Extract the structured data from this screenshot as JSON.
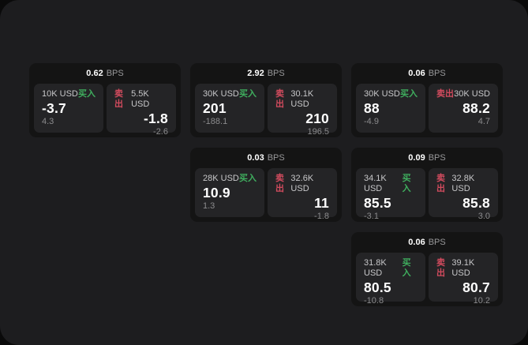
{
  "labels": {
    "bps_unit": "BPS",
    "buy": "买入",
    "sell": "卖出"
  },
  "colors": {
    "backdrop": "#0a0a0a",
    "window_bg": "#1d1d1f",
    "card_bg": "#141414",
    "panel_bg": "#242426",
    "buy_green": "#3fae5e",
    "sell_red": "#d24b5e",
    "value_white": "#ffffff",
    "muted_gray": "#8b8b8d"
  },
  "cards": [
    {
      "bps": "0.62",
      "buy": {
        "notional": "10K USD",
        "price": "-3.7",
        "delta": "4.3"
      },
      "sell": {
        "notional": "5.5K USD",
        "price": "-1.8",
        "delta": "-2.6"
      }
    },
    {
      "bps": "2.92",
      "buy": {
        "notional": "30K USD",
        "price": "201",
        "delta": "-188.1"
      },
      "sell": {
        "notional": "30.1K USD",
        "price": "210",
        "delta": "196.5"
      }
    },
    {
      "bps": "0.06",
      "buy": {
        "notional": "30K USD",
        "price": "88",
        "delta": "-4.9"
      },
      "sell": {
        "notional": "30K USD",
        "price": "88.2",
        "delta": "4.7"
      }
    },
    {
      "bps": "0.03",
      "buy": {
        "notional": "28K USD",
        "price": "10.9",
        "delta": "1.3"
      },
      "sell": {
        "notional": "32.6K USD",
        "price": "11",
        "delta": "-1.8"
      }
    },
    {
      "bps": "0.09",
      "buy": {
        "notional": "34.1K USD",
        "price": "85.5",
        "delta": "-3.1"
      },
      "sell": {
        "notional": "32.8K USD",
        "price": "85.8",
        "delta": "3.0"
      }
    },
    {
      "bps": "0.06",
      "buy": {
        "notional": "31.8K USD",
        "price": "80.5",
        "delta": "-10.8"
      },
      "sell": {
        "notional": "39.1K USD",
        "price": "80.7",
        "delta": "10.2"
      }
    }
  ]
}
